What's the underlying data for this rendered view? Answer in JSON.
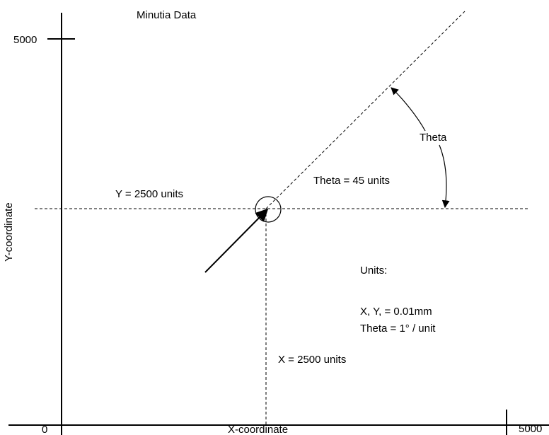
{
  "title": "Minutia Data",
  "axes": {
    "x_label": "X-coordinate",
    "y_label": "Y-coordinate",
    "origin_label": "0",
    "x_max_label": "5000",
    "y_max_label": "5000"
  },
  "annotations": {
    "y_value": "Y = 2500 units",
    "x_value": "X = 2500 units",
    "theta_value": "Theta = 45 units",
    "theta_label": "Theta",
    "units_heading": "Units:",
    "units_xy": "X, Y, = 0.01mm",
    "units_theta": "Theta = 1° / unit"
  },
  "minutia": {
    "x": 2500,
    "y": 2500,
    "theta": 45
  }
}
